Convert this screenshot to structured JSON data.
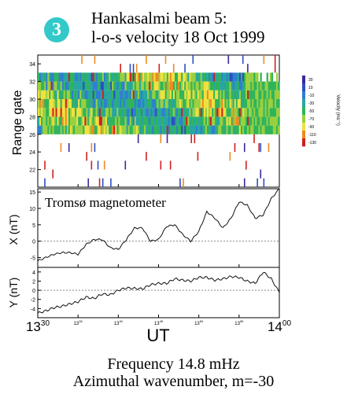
{
  "header": {
    "badge": "3",
    "title_line1": "Hankasalmi beam 5:",
    "title_line2": "l-o-s velocity   18 Oct 1999"
  },
  "footer": {
    "line1": "Frequency 14.8 mHz",
    "line2": "Azimuthal wavenumber, m=-30"
  },
  "chart_data": [
    {
      "type": "heatmap",
      "ylabel": "Range gate",
      "yticks": [
        22,
        24,
        26,
        28,
        30,
        32,
        34
      ],
      "ylim": [
        20,
        35
      ],
      "colorbar": {
        "label": "Velocity (ms⁻¹)",
        "ticks": [
          30,
          10,
          -10,
          -30,
          -50,
          -70,
          -90,
          -110,
          -130
        ],
        "colors": [
          "#3a2a9a",
          "#2d4fc0",
          "#2f7fd0",
          "#27a6a0",
          "#30b45a",
          "#9ad040",
          "#f0e040",
          "#f08a20",
          "#d02020"
        ]
      },
      "dense_gates": [
        26,
        33
      ],
      "sparse_gates": [
        20,
        35
      ]
    },
    {
      "type": "line",
      "annotation": "Tromsø magnetometer",
      "ylabel": "X (nT)",
      "yticks": [
        -5,
        0,
        5,
        10,
        15
      ],
      "ylim": [
        -8,
        16
      ],
      "xlim": [
        30,
        60
      ],
      "x": [
        30,
        31,
        32,
        33,
        34,
        35,
        36,
        37,
        38,
        39,
        40,
        41,
        42,
        43,
        44,
        45,
        46,
        47,
        48,
        49,
        50,
        51,
        52,
        53,
        54,
        55,
        56,
        57,
        58,
        59,
        60
      ],
      "values": [
        -6,
        -5,
        -4,
        -3.5,
        -3.5,
        -4,
        -1,
        0.5,
        0.5,
        -2,
        -2.5,
        0.5,
        4,
        4,
        0,
        0.5,
        4.5,
        5,
        2,
        0,
        3,
        9,
        7,
        4,
        7,
        12,
        11,
        7,
        8,
        13,
        16
      ]
    },
    {
      "type": "line",
      "ylabel": "Y (nT)",
      "yticks": [
        -4,
        -2,
        0,
        2,
        4
      ],
      "ylim": [
        -6,
        5
      ],
      "xlim": [
        30,
        60
      ],
      "x": [
        30,
        31,
        32,
        33,
        34,
        35,
        36,
        37,
        38,
        39,
        40,
        41,
        42,
        43,
        44,
        45,
        46,
        47,
        48,
        49,
        50,
        51,
        52,
        53,
        54,
        55,
        56,
        57,
        58,
        59,
        60
      ],
      "values": [
        -5,
        -4.5,
        -3.8,
        -3.5,
        -3,
        -2.5,
        -1.5,
        -1.8,
        -0.8,
        -1,
        0,
        0.5,
        0.4,
        0.3,
        1.2,
        1.5,
        1.5,
        2.5,
        2.2,
        2,
        2.8,
        2.8,
        2.2,
        2.5,
        3,
        2.8,
        2,
        1.5,
        4,
        2.5,
        -0.5
      ]
    }
  ],
  "xaxis": {
    "label": "UT",
    "ticks": [
      {
        "v": 30,
        "hour": "13",
        "min": "30",
        "big": true
      },
      {
        "v": 35,
        "hour": "13",
        "min": "35",
        "big": false
      },
      {
        "v": 40,
        "hour": "13",
        "min": "40",
        "big": false
      },
      {
        "v": 45,
        "hour": "13",
        "min": "45",
        "big": false
      },
      {
        "v": 50,
        "hour": "13",
        "min": "50",
        "big": false
      },
      {
        "v": 55,
        "hour": "13",
        "min": "55",
        "big": false
      },
      {
        "v": 60,
        "hour": "14",
        "min": "00",
        "big": true
      }
    ]
  }
}
